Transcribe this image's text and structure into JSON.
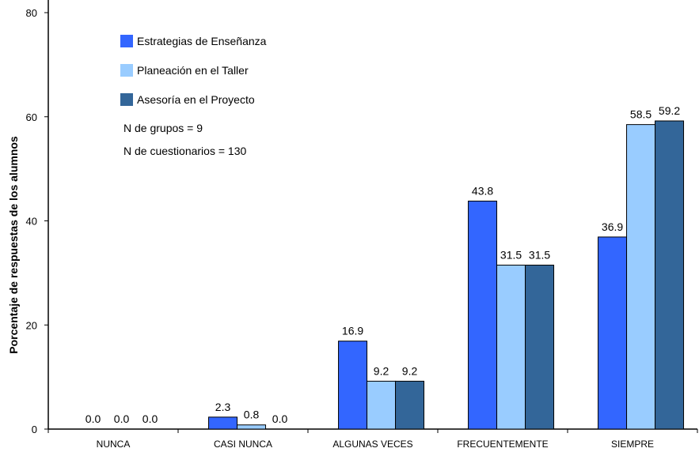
{
  "chart_data": {
    "type": "bar",
    "title": "",
    "xlabel": "",
    "ylabel": "Porcentaje de respuestas de los alumnos",
    "ylim": [
      0,
      80
    ],
    "yticks": [
      "0",
      "20",
      "40",
      "60",
      "80"
    ],
    "ytick_values": [
      0,
      20,
      40,
      60,
      80
    ],
    "grid": false,
    "legend_position": "top-left",
    "categories": [
      "NUNCA",
      "CASI NUNCA",
      "ALGUNAS VECES",
      "FRECUENTEMENTE",
      "SIEMPRE"
    ],
    "series": [
      {
        "name": "Estrategias de Enseñanza",
        "color": "#3366ff",
        "values": [
          0.0,
          2.3,
          16.9,
          43.8,
          36.9
        ],
        "labels": [
          "0.0",
          "2.3",
          "16.9",
          "43.8",
          "36.9"
        ]
      },
      {
        "name": "Planeación en el Taller",
        "color": "#99ccff",
        "values": [
          0.0,
          0.8,
          9.2,
          31.5,
          58.5
        ],
        "labels": [
          "0.0",
          "0.8",
          "9.2",
          "31.5",
          "58.5"
        ]
      },
      {
        "name": "Asesoría en el Proyecto",
        "color": "#336699",
        "values": [
          0.0,
          0.0,
          9.2,
          31.5,
          59.2
        ],
        "labels": [
          "0.0",
          "0.0",
          "9.2",
          "31.5",
          "59.2"
        ]
      }
    ],
    "annotations": [
      "N de grupos = 9",
      "N de cuestionarios = 130"
    ]
  }
}
